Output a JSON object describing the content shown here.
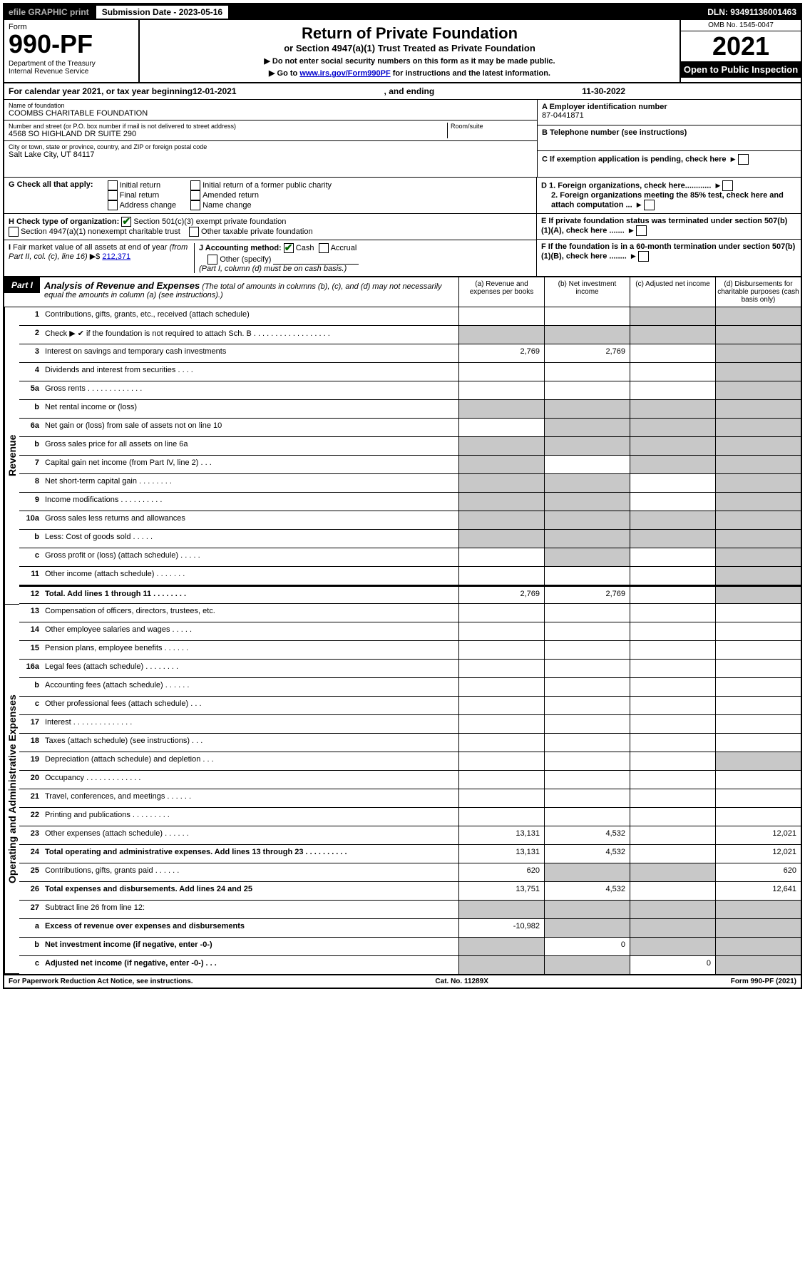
{
  "topbar": {
    "efile": "efile GRAPHIC print",
    "subdate_label": "Submission Date - 2023-05-16",
    "dln": "DLN: 93491136001463"
  },
  "formhead": {
    "form_word": "Form",
    "form_num": "990-PF",
    "dept": "Department of the Treasury\nInternal Revenue Service",
    "title": "Return of Private Foundation",
    "subtitle": "or Section 4947(a)(1) Trust Treated as Private Foundation",
    "note1": "▶ Do not enter social security numbers on this form as it may be made public.",
    "note2_pre": "▶ Go to ",
    "note2_link": "www.irs.gov/Form990PF",
    "note2_post": " for instructions and the latest information.",
    "omb": "OMB No. 1545-0047",
    "year": "2021",
    "open": "Open to Public Inspection"
  },
  "cal": {
    "prefix": "For calendar year 2021, or tax year beginning ",
    "begin": "12-01-2021",
    "mid": ", and ending ",
    "end": "11-30-2022"
  },
  "id": {
    "name_lbl": "Name of foundation",
    "name": "COOMBS CHARITABLE FOUNDATION",
    "addr_lbl": "Number and street (or P.O. box number if mail is not delivered to street address)",
    "addr": "4568 SO HIGHLAND DR SUITE 290",
    "room_lbl": "Room/suite",
    "room": "",
    "city_lbl": "City or town, state or province, country, and ZIP or foreign postal code",
    "city": "Salt Lake City, UT  84117",
    "ein_lbl": "A Employer identification number",
    "ein": "87-0441871",
    "phone_lbl": "B Telephone number (see instructions)",
    "phone": "",
    "c_lbl": "C If exemption application is pending, check here"
  },
  "g": {
    "label": "G Check all that apply:",
    "opts": [
      "Initial return",
      "Final return",
      "Address change",
      "Initial return of a former public charity",
      "Amended return",
      "Name change"
    ]
  },
  "h": {
    "label": "H Check type of organization:",
    "o1": "Section 501(c)(3) exempt private foundation",
    "o2": "Section 4947(a)(1) nonexempt charitable trust",
    "o3": "Other taxable private foundation"
  },
  "i": {
    "label": "I Fair market value of all assets at end of year (from Part II, col. (c), line 16) ▶$ ",
    "value": "212,371"
  },
  "j": {
    "label": "J Accounting method:",
    "cash": "Cash",
    "accrual": "Accrual",
    "other": "Other (specify)",
    "note": "(Part I, column (d) must be on cash basis.)"
  },
  "d": {
    "d1": "D 1. Foreign organizations, check here............",
    "d2": "2. Foreign organizations meeting the 85% test, check here and attach computation ..."
  },
  "e_lbl": "E  If private foundation status was terminated under section 507(b)(1)(A), check here .......",
  "f_lbl": "F  If the foundation is in a 60-month termination under section 507(b)(1)(B), check here ........",
  "part1": {
    "label": "Part I",
    "title": "Analysis of Revenue and Expenses",
    "note": " (The total of amounts in columns (b), (c), and (d) may not necessarily equal the amounts in column (a) (see instructions).)",
    "cols": [
      "(a)   Revenue and expenses per books",
      "(b)   Net investment income",
      "(c)   Adjusted net income",
      "(d)   Disbursements for charitable purposes (cash basis only)"
    ]
  },
  "sidelabels": {
    "rev": "Revenue",
    "exp": "Operating and Administrative Expenses"
  },
  "rows": [
    {
      "n": "1",
      "d": "Contributions, gifts, grants, etc., received (attach schedule)",
      "a": "",
      "b": "",
      "c": "",
      "dd": "",
      "sh": [
        "c",
        "dd"
      ]
    },
    {
      "n": "2",
      "d": "Check ▶ ✔ if the foundation is not required to attach Sch. B   .  .  .  .  .  .  .  .  .  .  .  .  .  .  .  .  .  .",
      "a": "",
      "b": "",
      "c": "",
      "dd": "",
      "sh": [
        "a",
        "b",
        "c",
        "dd"
      ],
      "merged": true
    },
    {
      "n": "3",
      "d": "Interest on savings and temporary cash investments",
      "a": "2,769",
      "b": "2,769",
      "c": "",
      "dd": "",
      "sh": [
        "dd"
      ]
    },
    {
      "n": "4",
      "d": "Dividends and interest from securities   .   .   .   .",
      "a": "",
      "b": "",
      "c": "",
      "dd": "",
      "sh": [
        "dd"
      ]
    },
    {
      "n": "5a",
      "d": "Gross rents   .   .   .   .   .   .   .   .   .   .   .   .   .",
      "a": "",
      "b": "",
      "c": "",
      "dd": "",
      "sh": [
        "dd"
      ]
    },
    {
      "n": "b",
      "d": "Net rental income or (loss)",
      "a": "",
      "b": "",
      "c": "",
      "dd": "",
      "sh": [
        "a",
        "b",
        "c",
        "dd"
      ]
    },
    {
      "n": "6a",
      "d": "Net gain or (loss) from sale of assets not on line 10",
      "a": "",
      "b": "",
      "c": "",
      "dd": "",
      "sh": [
        "b",
        "c",
        "dd"
      ]
    },
    {
      "n": "b",
      "d": "Gross sales price for all assets on line 6a",
      "a": "",
      "b": "",
      "c": "",
      "dd": "",
      "sh": [
        "a",
        "b",
        "c",
        "dd"
      ]
    },
    {
      "n": "7",
      "d": "Capital gain net income (from Part IV, line 2)   .   .   .",
      "a": "",
      "b": "",
      "c": "",
      "dd": "",
      "sh": [
        "a",
        "c",
        "dd"
      ]
    },
    {
      "n": "8",
      "d": "Net short-term capital gain   .   .   .   .   .   .   .   .",
      "a": "",
      "b": "",
      "c": "",
      "dd": "",
      "sh": [
        "a",
        "b",
        "dd"
      ]
    },
    {
      "n": "9",
      "d": "Income modifications   .   .   .   .   .   .   .   .   .   .",
      "a": "",
      "b": "",
      "c": "",
      "dd": "",
      "sh": [
        "a",
        "b",
        "dd"
      ]
    },
    {
      "n": "10a",
      "d": "Gross sales less returns and allowances",
      "a": "",
      "b": "",
      "c": "",
      "dd": "",
      "sh": [
        "a",
        "b",
        "c",
        "dd"
      ]
    },
    {
      "n": "b",
      "d": "Less: Cost of goods sold   .   .   .   .   .",
      "a": "",
      "b": "",
      "c": "",
      "dd": "",
      "sh": [
        "a",
        "b",
        "c",
        "dd"
      ]
    },
    {
      "n": "c",
      "d": "Gross profit or (loss) (attach schedule)   .   .   .   .   .",
      "a": "",
      "b": "",
      "c": "",
      "dd": "",
      "sh": [
        "b",
        "dd"
      ]
    },
    {
      "n": "11",
      "d": "Other income (attach schedule)   .   .   .   .   .   .   .",
      "a": "",
      "b": "",
      "c": "",
      "dd": "",
      "sh": [
        "dd"
      ]
    },
    {
      "n": "12",
      "d": "Total. Add lines 1 through 11   .   .   .   .   .   .   .   .",
      "a": "2,769",
      "b": "2,769",
      "c": "",
      "dd": "",
      "sh": [
        "dd"
      ],
      "bold": true
    },
    {
      "n": "13",
      "d": "Compensation of officers, directors, trustees, etc.",
      "a": "",
      "b": "",
      "c": "",
      "dd": "",
      "sh": []
    },
    {
      "n": "14",
      "d": "Other employee salaries and wages   .   .   .   .   .",
      "a": "",
      "b": "",
      "c": "",
      "dd": "",
      "sh": []
    },
    {
      "n": "15",
      "d": "Pension plans, employee benefits   .   .   .   .   .   .",
      "a": "",
      "b": "",
      "c": "",
      "dd": "",
      "sh": []
    },
    {
      "n": "16a",
      "d": "Legal fees (attach schedule)   .   .   .   .   .   .   .   .",
      "a": "",
      "b": "",
      "c": "",
      "dd": "",
      "sh": []
    },
    {
      "n": "b",
      "d": "Accounting fees (attach schedule)   .   .   .   .   .   .",
      "a": "",
      "b": "",
      "c": "",
      "dd": "",
      "sh": []
    },
    {
      "n": "c",
      "d": "Other professional fees (attach schedule)   .   .   .",
      "a": "",
      "b": "",
      "c": "",
      "dd": "",
      "sh": []
    },
    {
      "n": "17",
      "d": "Interest   .   .   .   .   .   .   .   .   .   .   .   .   .   .",
      "a": "",
      "b": "",
      "c": "",
      "dd": "",
      "sh": []
    },
    {
      "n": "18",
      "d": "Taxes (attach schedule) (see instructions)   .   .   .",
      "a": "",
      "b": "",
      "c": "",
      "dd": "",
      "sh": []
    },
    {
      "n": "19",
      "d": "Depreciation (attach schedule) and depletion   .   .   .",
      "a": "",
      "b": "",
      "c": "",
      "dd": "",
      "sh": [
        "dd"
      ]
    },
    {
      "n": "20",
      "d": "Occupancy   .   .   .   .   .   .   .   .   .   .   .   .   .",
      "a": "",
      "b": "",
      "c": "",
      "dd": "",
      "sh": []
    },
    {
      "n": "21",
      "d": "Travel, conferences, and meetings   .   .   .   .   .   .",
      "a": "",
      "b": "",
      "c": "",
      "dd": "",
      "sh": []
    },
    {
      "n": "22",
      "d": "Printing and publications   .   .   .   .   .   .   .   .   .",
      "a": "",
      "b": "",
      "c": "",
      "dd": "",
      "sh": []
    },
    {
      "n": "23",
      "d": "Other expenses (attach schedule)   .   .   .   .   .   .",
      "a": "13,131",
      "b": "4,532",
      "c": "",
      "dd": "12,021",
      "sh": []
    },
    {
      "n": "24",
      "d": "Total operating and administrative expenses. Add lines 13 through 23   .   .   .   .   .   .   .   .   .   .",
      "a": "13,131",
      "b": "4,532",
      "c": "",
      "dd": "12,021",
      "sh": [],
      "bold": true
    },
    {
      "n": "25",
      "d": "Contributions, gifts, grants paid   .   .   .   .   .   .",
      "a": "620",
      "b": "",
      "c": "",
      "dd": "620",
      "sh": [
        "b",
        "c"
      ]
    },
    {
      "n": "26",
      "d": "Total expenses and disbursements. Add lines 24 and 25",
      "a": "13,751",
      "b": "4,532",
      "c": "",
      "dd": "12,641",
      "sh": [],
      "bold": true
    },
    {
      "n": "27",
      "d": "Subtract line 26 from line 12:",
      "a": "",
      "b": "",
      "c": "",
      "dd": "",
      "sh": [
        "a",
        "b",
        "c",
        "dd"
      ]
    },
    {
      "n": "a",
      "d": "Excess of revenue over expenses and disbursements",
      "a": "-10,982",
      "b": "",
      "c": "",
      "dd": "",
      "sh": [
        "b",
        "c",
        "dd"
      ],
      "bold": true
    },
    {
      "n": "b",
      "d": "Net investment income (if negative, enter -0-)",
      "a": "",
      "b": "0",
      "c": "",
      "dd": "",
      "sh": [
        "a",
        "c",
        "dd"
      ],
      "bold": true
    },
    {
      "n": "c",
      "d": "Adjusted net income (if negative, enter -0-)   .   .   .",
      "a": "",
      "b": "",
      "c": "0",
      "dd": "",
      "sh": [
        "a",
        "b",
        "dd"
      ],
      "bold": true
    }
  ],
  "footer": {
    "left": "For Paperwork Reduction Act Notice, see instructions.",
    "mid": "Cat. No. 11289X",
    "right": "Form 990-PF (2021)"
  }
}
